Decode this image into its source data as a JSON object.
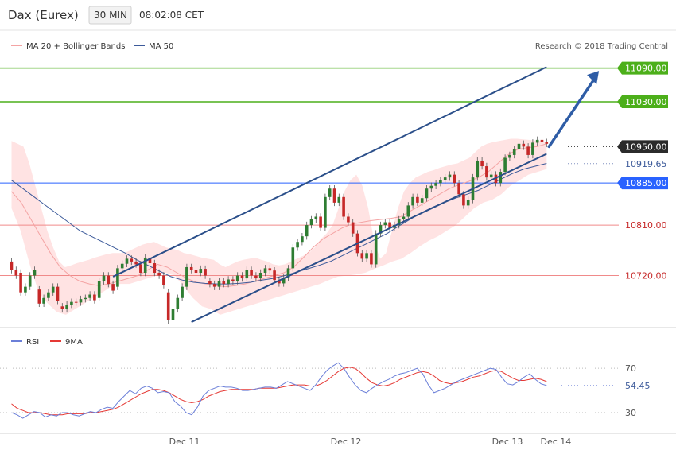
{
  "header": {
    "instrument": "Dax (Eurex)",
    "interval": "30 MIN",
    "time": "08:02:08 CET"
  },
  "legend": {
    "bollinger": "MA 20 + Bollinger Bands",
    "ma50": "MA 50",
    "credit": "Research © 2018 Trading Central"
  },
  "rsi_legend": {
    "rsi": "RSI",
    "ma": "9MA"
  },
  "colors": {
    "up": "#2e7d32",
    "down": "#c62828",
    "resistance": "#4caf1a",
    "support": "#f08a8a",
    "pivot": "#2962ff",
    "channel": "#2b4f8a",
    "band_fill": "#ffe3e3",
    "ma20": "#f4a4a4",
    "ma50": "#3c5a9a",
    "rsi": "#6b7fd8",
    "rsi_ma": "#e53935"
  },
  "chart_data": [
    {
      "type": "candlestick",
      "ylim": [
        10630,
        11115
      ],
      "x_range": [
        0,
        116
      ],
      "date_labels": [
        {
          "label": "Dec 11",
          "x": 37.5
        },
        {
          "label": "Dec 12",
          "x": 72.5
        },
        {
          "label": "Dec 13",
          "x": 107.5
        },
        {
          "label": "Dec 14",
          "x": 118
        }
      ],
      "candles": [
        [
          10745,
          10730
        ],
        [
          10730,
          10720
        ],
        [
          10725,
          10690
        ],
        [
          10690,
          10700
        ],
        [
          10700,
          10720
        ],
        [
          10720,
          10730
        ],
        [
          10695,
          10670
        ],
        [
          10670,
          10680
        ],
        [
          10680,
          10690
        ],
        [
          10690,
          10700
        ],
        [
          10700,
          10675
        ],
        [
          10665,
          10660
        ],
        [
          10660,
          10668
        ],
        [
          10668,
          10673
        ],
        [
          10673,
          10672
        ],
        [
          10672,
          10678
        ],
        [
          10678,
          10680
        ],
        [
          10680,
          10686
        ],
        [
          10686,
          10676
        ],
        [
          10680,
          10710
        ],
        [
          10710,
          10720
        ],
        [
          10720,
          10705
        ],
        [
          10705,
          10693
        ],
        [
          10700,
          10733
        ],
        [
          10733,
          10741
        ],
        [
          10741,
          10750
        ],
        [
          10750,
          10745
        ],
        [
          10745,
          10740
        ],
        [
          10740,
          10725
        ],
        [
          10725,
          10752
        ],
        [
          10752,
          10742
        ],
        [
          10742,
          10725
        ],
        [
          10725,
          10720
        ],
        [
          10720,
          10703
        ],
        [
          10690,
          10640
        ],
        [
          10640,
          10660
        ],
        [
          10660,
          10680
        ],
        [
          10680,
          10700
        ],
        [
          10700,
          10735
        ],
        [
          10735,
          10730
        ],
        [
          10730,
          10725
        ],
        [
          10725,
          10732
        ],
        [
          10732,
          10720
        ],
        [
          10710,
          10705
        ],
        [
          10705,
          10700
        ],
        [
          10700,
          10710
        ],
        [
          10710,
          10705
        ],
        [
          10705,
          10713
        ],
        [
          10713,
          10710
        ],
        [
          10710,
          10720
        ],
        [
          10720,
          10715
        ],
        [
          10715,
          10730
        ],
        [
          10730,
          10720
        ],
        [
          10720,
          10715
        ],
        [
          10715,
          10725
        ],
        [
          10725,
          10733
        ],
        [
          10733,
          10729
        ],
        [
          10729,
          10712
        ],
        [
          10712,
          10706
        ],
        [
          10706,
          10716
        ],
        [
          10716,
          10733
        ],
        [
          10733,
          10770
        ],
        [
          10770,
          10780
        ],
        [
          10780,
          10790
        ],
        [
          10790,
          10810
        ],
        [
          10810,
          10820
        ],
        [
          10820,
          10825
        ],
        [
          10825,
          10805
        ],
        [
          10805,
          10860
        ],
        [
          10860,
          10875
        ],
        [
          10875,
          10850
        ],
        [
          10850,
          10860
        ],
        [
          10860,
          10825
        ],
        [
          10825,
          10815
        ],
        [
          10815,
          10795
        ],
        [
          10795,
          10760
        ],
        [
          10760,
          10750
        ],
        [
          10750,
          10760
        ],
        [
          10760,
          10740
        ],
        [
          10740,
          10795
        ],
        [
          10795,
          10810
        ],
        [
          10810,
          10815
        ],
        [
          10815,
          10805
        ],
        [
          10805,
          10810
        ],
        [
          10810,
          10820
        ],
        [
          10820,
          10825
        ],
        [
          10825,
          10845
        ],
        [
          10845,
          10860
        ],
        [
          10860,
          10850
        ],
        [
          10850,
          10858
        ],
        [
          10858,
          10875
        ],
        [
          10875,
          10880
        ],
        [
          10880,
          10885
        ],
        [
          10885,
          10890
        ],
        [
          10890,
          10895
        ],
        [
          10895,
          10900
        ],
        [
          10900,
          10885
        ],
        [
          10885,
          10865
        ],
        [
          10865,
          10845
        ],
        [
          10845,
          10855
        ],
        [
          10855,
          10895
        ],
        [
          10895,
          10925
        ],
        [
          10925,
          10915
        ],
        [
          10915,
          10895
        ],
        [
          10895,
          10900
        ],
        [
          10900,
          10885
        ],
        [
          10885,
          10905
        ],
        [
          10905,
          10930
        ],
        [
          10930,
          10935
        ],
        [
          10935,
          10945
        ],
        [
          10945,
          10955
        ],
        [
          10955,
          10950
        ],
        [
          10950,
          10935
        ],
        [
          10935,
          10957
        ],
        [
          10957,
          10962
        ],
        [
          10962,
          10958
        ],
        [
          10958,
          10955
        ]
      ],
      "bollinger_upper": [
        10960,
        10955,
        10950,
        10920,
        10880,
        10840,
        10800,
        10770,
        10745,
        10735,
        10738,
        10742,
        10745,
        10748,
        10752,
        10755,
        10758,
        10760,
        10760,
        10760,
        10765,
        10770,
        10775,
        10778,
        10780,
        10775,
        10770,
        10768,
        10765,
        10760,
        10758,
        10755,
        10752,
        10750,
        10748,
        10740,
        10735,
        10740,
        10745,
        10748,
        10750,
        10752,
        10748,
        10745,
        10740,
        10738,
        10740,
        10745,
        10750,
        10755,
        10760,
        10770,
        10785,
        10795,
        10810,
        10840,
        10870,
        10890,
        10900,
        10880,
        10840,
        10780,
        10750,
        10760,
        10800,
        10840,
        10870,
        10885,
        10895,
        10900,
        10905,
        10908,
        10912,
        10915,
        10918,
        10920,
        10925,
        10930,
        10940,
        10950,
        10955,
        10958,
        10960,
        10962,
        10964,
        10964,
        10963,
        10962,
        10961,
        10960,
        10958
      ],
      "bollinger_lower": [
        10840,
        10800,
        10740,
        10690,
        10670,
        10655,
        10650,
        10660,
        10670,
        10680,
        10690,
        10700,
        10705,
        10705,
        10710,
        10715,
        10720,
        10725,
        10720,
        10700,
        10680,
        10665,
        10660,
        10650,
        10655,
        10660,
        10665,
        10670,
        10675,
        10680,
        10685,
        10690,
        10695,
        10700,
        10705,
        10712,
        10718,
        10720,
        10722,
        10725,
        10732,
        10738,
        10745,
        10750,
        10760,
        10772,
        10782,
        10790,
        10800,
        10810,
        10825,
        10840,
        10850,
        10855,
        10865,
        10880,
        10890,
        10900,
        10905,
        10910
      ],
      "ma20": [
        10870,
        10850,
        10820,
        10790,
        10760,
        10735,
        10720,
        10710,
        10705,
        10702,
        10705,
        10710,
        10715,
        10720,
        10730,
        10740,
        10735,
        10725,
        10715,
        10708,
        10705,
        10702,
        10700,
        10702,
        10705,
        10710,
        10715,
        10720,
        10725,
        10735,
        10752,
        10770,
        10785,
        10795,
        10805,
        10812,
        10815,
        10818,
        10820,
        10822,
        10825,
        10835,
        10845,
        10855,
        10865,
        10875,
        10882,
        10888,
        10895,
        10905,
        10920,
        10935,
        10945,
        10948,
        10950,
        10955
      ],
      "ma50": [
        10890,
        10875,
        10860,
        10845,
        10830,
        10815,
        10800,
        10790,
        10780,
        10770,
        10760,
        10748,
        10738,
        10728,
        10718,
        10712,
        10708,
        10706,
        10705,
        10705,
        10706,
        10708,
        10712,
        10715,
        10720,
        10726,
        10732,
        10738,
        10745,
        10755,
        10765,
        10775,
        10785,
        10795,
        10808,
        10820,
        10832,
        10842,
        10850,
        10858,
        10865,
        10872,
        10882,
        10892,
        10902,
        10910,
        10915,
        10920
      ],
      "levels": [
        {
          "value": 11090,
          "label": "11090.00",
          "kind": "resistance"
        },
        {
          "value": 11030,
          "label": "11030.00",
          "kind": "resistance"
        },
        {
          "value": 10950,
          "label": "10950.00",
          "kind": "last"
        },
        {
          "value": 10919.65,
          "label": "10919.65",
          "kind": "ma"
        },
        {
          "value": 10885,
          "label": "10885.00",
          "kind": "pivot"
        },
        {
          "value": 10810,
          "label": "10810.00",
          "kind": "support"
        },
        {
          "value": 10720,
          "label": "10720.00",
          "kind": "support"
        }
      ],
      "trend_channel": {
        "upper": [
          [
            22,
            10718
          ],
          [
            116,
            11092
          ]
        ],
        "lower": [
          [
            39,
            10637
          ],
          [
            116,
            10937
          ]
        ]
      },
      "forecast_arrow": {
        "from": [
          116,
          10950
        ],
        "to": [
          127,
          11085
        ]
      }
    },
    {
      "type": "line",
      "name": "RSI",
      "ylim": [
        15,
        88
      ],
      "ticks": [
        {
          "value": 70,
          "label": "70"
        },
        {
          "value": 30,
          "label": "30"
        }
      ],
      "last_value": {
        "value": 54.45,
        "label": "54.45"
      },
      "rsi": [
        30,
        28,
        25,
        28,
        31,
        30,
        26,
        28,
        27,
        30,
        30,
        28,
        27,
        29,
        31,
        30,
        33,
        35,
        34,
        40,
        45,
        50,
        47,
        52,
        54,
        52,
        48,
        49,
        48,
        40,
        36,
        30,
        28,
        35,
        45,
        50,
        52,
        54,
        53,
        53,
        52,
        50,
        50,
        51,
        52,
        53,
        53,
        52,
        55,
        58,
        56,
        54,
        52,
        50,
        55,
        62,
        68,
        72,
        75,
        70,
        62,
        55,
        50,
        48,
        52,
        55,
        58,
        60,
        63,
        65,
        66,
        68,
        70,
        65,
        55,
        48,
        50,
        52,
        55,
        58,
        60,
        62,
        64,
        66,
        68,
        70,
        69,
        62,
        56,
        55,
        58,
        62,
        65,
        60,
        56,
        54.45
      ],
      "rsi_ma": [
        38,
        34,
        32,
        30,
        30,
        30,
        29,
        28,
        28,
        28,
        29,
        29,
        29,
        29,
        30,
        30,
        31,
        32,
        33,
        35,
        38,
        41,
        44,
        47,
        49,
        51,
        51,
        50,
        48,
        45,
        42,
        40,
        39,
        40,
        42,
        45,
        47,
        49,
        50,
        51,
        51,
        51,
        51,
        51,
        52,
        52,
        52,
        52,
        53,
        54,
        55,
        55,
        55,
        54,
        54,
        56,
        59,
        63,
        67,
        70,
        71,
        70,
        66,
        61,
        57,
        55,
        54,
        55,
        57,
        60,
        62,
        64,
        66,
        67,
        66,
        63,
        59,
        57,
        56,
        57,
        58,
        60,
        62,
        63,
        65,
        67,
        68,
        67,
        64,
        61,
        59,
        59,
        60,
        61,
        60,
        58
      ]
    }
  ]
}
